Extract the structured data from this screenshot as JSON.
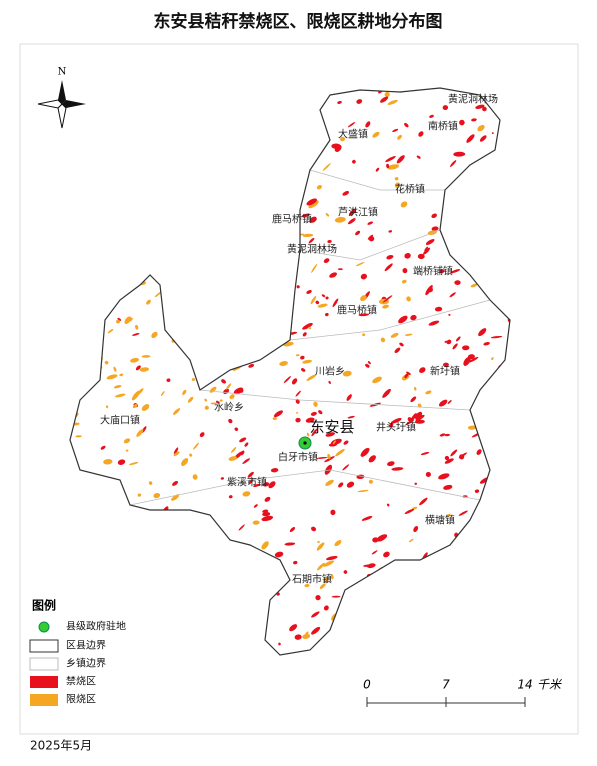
{
  "title": "东安县秸秆禁烧区、限烧区耕地分布图",
  "north": "N",
  "places": [
    "黄泥洞林场",
    "南桥镇",
    "大盛镇",
    "花桥镇",
    "鹿马桥镇",
    "芦洪江镇",
    "黄泥洞林场",
    "端桥铺镇",
    "鹿马桥镇",
    "川岩乡",
    "新圩镇",
    "大庙口镇",
    "水岭乡",
    "井头圩镇",
    "白牙市镇",
    "紫溪市镇",
    "横塘镇",
    "石期市镇"
  ],
  "county_label": "东安县",
  "legend": {
    "title": "图例",
    "items": [
      "县级政府驻地",
      "区县边界",
      "乡镇边界",
      "禁烧区",
      "限烧区"
    ]
  },
  "scale": {
    "ticks": [
      0,
      7,
      14
    ],
    "unit": "千米"
  },
  "date": "2025年5月"
}
